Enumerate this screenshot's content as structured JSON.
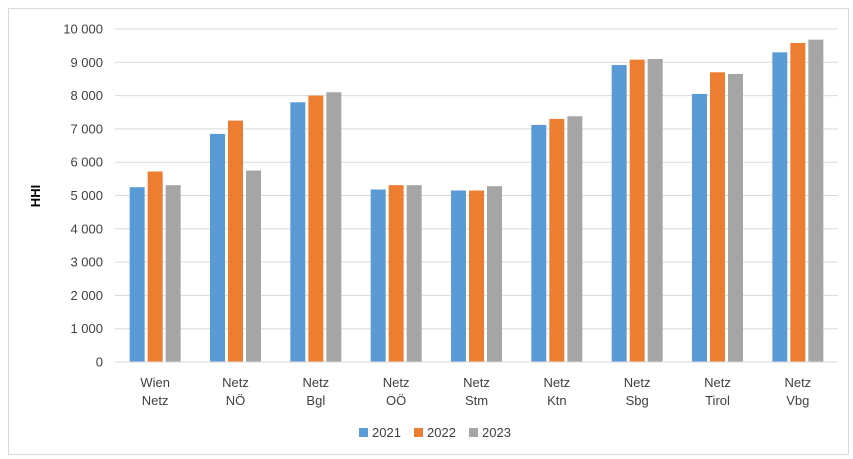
{
  "chart_data": {
    "type": "bar",
    "ylabel": "HHI",
    "ylim": [
      0,
      10000
    ],
    "yticks": [
      0,
      1000,
      2000,
      3000,
      4000,
      5000,
      6000,
      7000,
      8000,
      9000,
      10000
    ],
    "ytick_labels": [
      "0",
      "1 000",
      "2 000",
      "3 000",
      "4 000",
      "5 000",
      "6 000",
      "7 000",
      "8 000",
      "9 000",
      "10 000"
    ],
    "grid": true,
    "legend_position": "bottom",
    "categories": [
      [
        "Wien",
        "Netz"
      ],
      [
        "Netz",
        "NÖ"
      ],
      [
        "Netz",
        "Bgl"
      ],
      [
        "Netz",
        "OÖ"
      ],
      [
        "Netz",
        "Stm"
      ],
      [
        "Netz",
        "Ktn"
      ],
      [
        "Netz",
        "Sbg"
      ],
      [
        "Netz",
        "Tirol"
      ],
      [
        "Netz",
        "Vbg"
      ]
    ],
    "series": [
      {
        "name": "2021",
        "color": "#5b9bd5",
        "values": [
          5250,
          6850,
          7800,
          5180,
          5150,
          7120,
          8920,
          8050,
          9300
        ]
      },
      {
        "name": "2022",
        "color": "#ed7d31",
        "values": [
          5720,
          7250,
          8000,
          5310,
          5150,
          7300,
          9080,
          8700,
          9580
        ]
      },
      {
        "name": "2023",
        "color": "#a5a5a5",
        "values": [
          5310,
          5750,
          8100,
          5310,
          5280,
          7380,
          9100,
          8650,
          9680
        ]
      }
    ]
  }
}
